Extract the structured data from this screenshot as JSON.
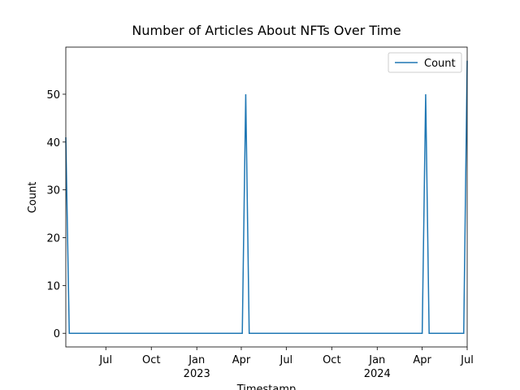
{
  "chart_data": {
    "type": "line",
    "title": "Number of Articles About NFTs Over Time",
    "x_label": "Timestamp",
    "y_label": "Count",
    "x": [
      "2022-04-11",
      "2022-04-18",
      "2023-04-03",
      "2023-04-10",
      "2023-04-17",
      "2024-04-01",
      "2024-04-08",
      "2024-04-15",
      "2024-06-24",
      "2024-07-01"
    ],
    "series": [
      {
        "name": "Count",
        "color": "#1f77b4",
        "values": [
          41,
          0,
          0,
          50,
          0,
          0,
          50,
          0,
          0,
          57
        ]
      }
    ],
    "xlim": [
      "2022-04-11",
      "2024-07-01"
    ],
    "xticks": [
      {
        "value": "2022-07-01",
        "label": "Jul"
      },
      {
        "value": "2022-10-01",
        "label": "Oct"
      },
      {
        "value": "2023-01-01",
        "label": "Jan"
      },
      {
        "value": "2023-04-01",
        "label": "Apr"
      },
      {
        "value": "2023-07-01",
        "label": "Jul"
      },
      {
        "value": "2023-10-01",
        "label": "Oct"
      },
      {
        "value": "2024-01-01",
        "label": "Jan"
      },
      {
        "value": "2024-04-01",
        "label": "Apr"
      },
      {
        "value": "2024-07-01",
        "label": "Jul"
      }
    ],
    "x_year_ticks": [
      {
        "value": "2023-01-01",
        "label": "2023"
      },
      {
        "value": "2024-01-01",
        "label": "2024"
      }
    ],
    "ylim": [
      -2.85,
      59.85
    ],
    "yticks": [
      0,
      10,
      20,
      30,
      40,
      50
    ],
    "legend": "upper right"
  }
}
